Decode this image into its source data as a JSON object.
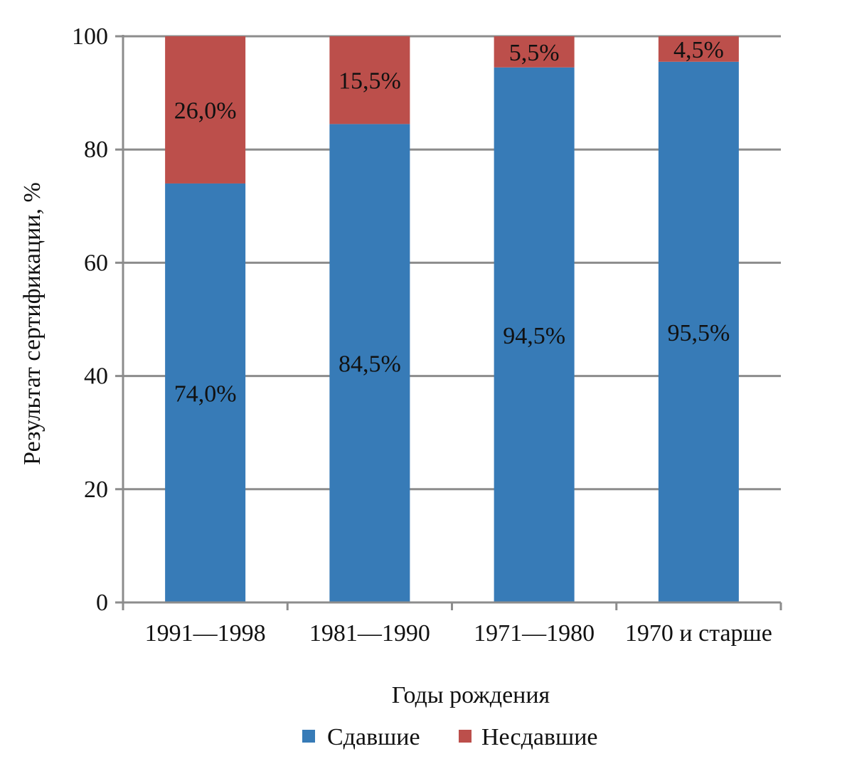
{
  "chart_data": {
    "type": "bar",
    "stacked": true,
    "categories": [
      "1991—1998",
      "1981—1990",
      "1971—1980",
      "1970 и старше"
    ],
    "series": [
      {
        "name": "Сдавшие",
        "values": [
          74.0,
          84.5,
          94.5,
          95.5
        ],
        "labels": [
          "74,0%",
          "84,5%",
          "94,5%",
          "95,5%"
        ],
        "color": "#377BB7"
      },
      {
        "name": "Несдавшие",
        "values": [
          26.0,
          15.5,
          5.5,
          4.5
        ],
        "labels": [
          "26,0%",
          "15,5%",
          "5,5%",
          "4,5%"
        ],
        "color": "#BC4F4B"
      }
    ],
    "xlabel": "Годы рождения",
    "ylabel": "Результат сертификации, %",
    "ylim": [
      0,
      100
    ],
    "yticks": [
      0,
      20,
      40,
      60,
      80,
      100
    ],
    "grid": true,
    "legend_position": "bottom",
    "grid_color": "#8C8C8C"
  }
}
